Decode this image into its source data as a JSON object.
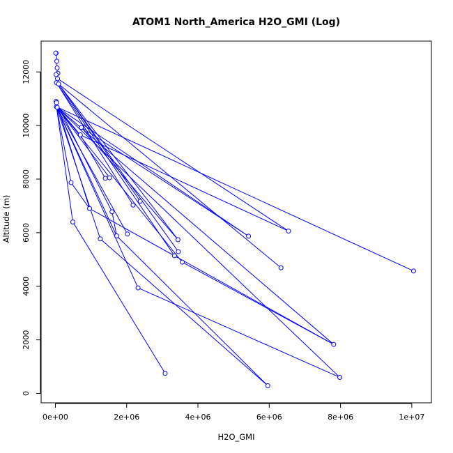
{
  "chart_data": {
    "type": "line",
    "title": "ATOM1 North_America H2O_GMI (Log)",
    "xlabel": "H2O_GMI",
    "ylabel": "Altitude (m)",
    "xlim": [
      -400000,
      10550000
    ],
    "ylim": [
      -350,
      13150
    ],
    "x_ticks": [
      0,
      2000000,
      4000000,
      6000000,
      8000000,
      10000000
    ],
    "x_tick_labels": [
      "0e+00",
      "2e+06",
      "4e+06",
      "6e+06",
      "8e+06",
      "1e+07"
    ],
    "y_ticks": [
      0,
      2000,
      4000,
      6000,
      8000,
      10000,
      12000
    ],
    "y_tick_labels": [
      "0",
      "2000",
      "4000",
      "6000",
      "8000",
      "10000",
      "12000"
    ],
    "color": "#0000ff",
    "marker": "open-circle",
    "points": [
      [
        20000,
        12700
      ],
      [
        10000,
        12700
      ],
      [
        40000,
        12400
      ],
      [
        50000,
        12150
      ],
      [
        70000,
        11950
      ],
      [
        20000,
        11900
      ],
      [
        60000,
        11750
      ],
      [
        30000,
        11600
      ],
      [
        90000,
        11550
      ],
      [
        20000,
        10900
      ],
      [
        30000,
        10850
      ],
      [
        30000,
        10700
      ],
      [
        50000,
        10680
      ],
      [
        730000,
        9930
      ],
      [
        700000,
        9650
      ],
      [
        1400000,
        8030
      ],
      [
        1520000,
        8050
      ],
      [
        440000,
        7870
      ],
      [
        2380000,
        7170
      ],
      [
        2180000,
        7030
      ],
      [
        960000,
        6900
      ],
      [
        1590000,
        6780
      ],
      [
        490000,
        6400
      ],
      [
        6540000,
        6060
      ],
      [
        5420000,
        5870
      ],
      [
        1720000,
        5880
      ],
      [
        2020000,
        5950
      ],
      [
        1260000,
        5770
      ],
      [
        3440000,
        5740
      ],
      [
        3450000,
        5290
      ],
      [
        3340000,
        5140
      ],
      [
        3560000,
        4900
      ],
      [
        6330000,
        4690
      ],
      [
        10050000,
        4570
      ],
      [
        2320000,
        3940
      ],
      [
        7810000,
        1830
      ],
      [
        3080000,
        750
      ],
      [
        7980000,
        600
      ],
      [
        5960000,
        290
      ]
    ],
    "segments": [
      [
        [
          20000,
          12700
        ],
        [
          40000,
          12400
        ]
      ],
      [
        [
          40000,
          12400
        ],
        [
          60000,
          11750
        ]
      ],
      [
        [
          60000,
          11750
        ],
        [
          6540000,
          6060
        ]
      ],
      [
        [
          90000,
          11550
        ],
        [
          3450000,
          5290
        ]
      ],
      [
        [
          90000,
          11550
        ],
        [
          3440000,
          5740
        ]
      ],
      [
        [
          90000,
          11550
        ],
        [
          2380000,
          7170
        ]
      ],
      [
        [
          90000,
          11550
        ],
        [
          6330000,
          4690
        ]
      ],
      [
        [
          30000,
          11600
        ],
        [
          3340000,
          5140
        ]
      ],
      [
        [
          30000,
          11600
        ],
        [
          2180000,
          7030
        ]
      ],
      [
        [
          50000,
          10680
        ],
        [
          700000,
          9650
        ]
      ],
      [
        [
          700000,
          9650
        ],
        [
          1400000,
          8030
        ]
      ],
      [
        [
          30000,
          10700
        ],
        [
          10050000,
          4570
        ]
      ],
      [
        [
          30000,
          10700
        ],
        [
          1520000,
          8050
        ]
      ],
      [
        [
          30000,
          10700
        ],
        [
          5420000,
          5870
        ]
      ],
      [
        [
          30000,
          10700
        ],
        [
          440000,
          7870
        ]
      ],
      [
        [
          30000,
          10700
        ],
        [
          2020000,
          5950
        ]
      ],
      [
        [
          30000,
          10850
        ],
        [
          1590000,
          6780
        ]
      ],
      [
        [
          30000,
          10850
        ],
        [
          960000,
          6900
        ]
      ],
      [
        [
          30000,
          10700
        ],
        [
          1720000,
          5880
        ]
      ],
      [
        [
          30000,
          10700
        ],
        [
          490000,
          6400
        ]
      ],
      [
        [
          30000,
          10700
        ],
        [
          7810000,
          1830
        ]
      ],
      [
        [
          30000,
          10700
        ],
        [
          3560000,
          4900
        ]
      ],
      [
        [
          30000,
          10700
        ],
        [
          1260000,
          5770
        ]
      ],
      [
        [
          30000,
          10700
        ],
        [
          7980000,
          600
        ]
      ],
      [
        [
          30000,
          10700
        ],
        [
          2320000,
          3940
        ]
      ],
      [
        [
          440000,
          7870
        ],
        [
          960000,
          6900
        ]
      ],
      [
        [
          960000,
          6900
        ],
        [
          7810000,
          1830
        ]
      ],
      [
        [
          1590000,
          6780
        ],
        [
          1720000,
          5880
        ]
      ],
      [
        [
          1720000,
          5880
        ],
        [
          5960000,
          290
        ]
      ],
      [
        [
          490000,
          6400
        ],
        [
          3080000,
          750
        ]
      ],
      [
        [
          1260000,
          5770
        ],
        [
          5960000,
          290
        ]
      ],
      [
        [
          2320000,
          3940
        ],
        [
          7980000,
          600
        ]
      ],
      [
        [
          3560000,
          4900
        ],
        [
          7810000,
          1830
        ]
      ],
      [
        [
          730000,
          9930
        ],
        [
          3440000,
          5740
        ]
      ],
      [
        [
          700000,
          9650
        ],
        [
          6540000,
          6060
        ]
      ],
      [
        [
          730000,
          9930
        ],
        [
          5420000,
          5870
        ]
      ]
    ]
  }
}
